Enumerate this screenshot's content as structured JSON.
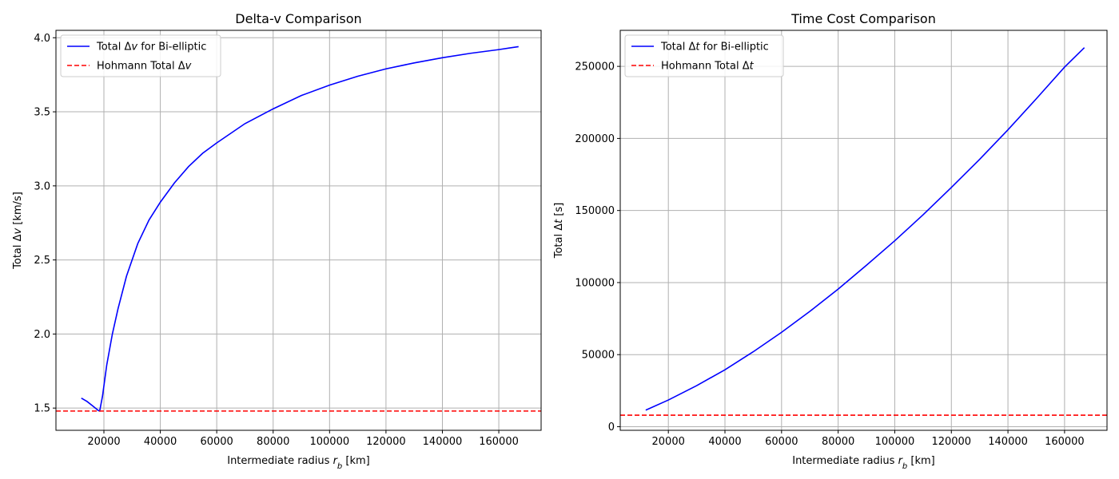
{
  "chart_data": [
    {
      "type": "line",
      "title": "Delta-v Comparison",
      "xlabel": "Intermediate radius r_b [km]",
      "ylabel": "Total Δv [km/s]",
      "xlim": [
        3000,
        175000
      ],
      "ylim": [
        1.35,
        4.05
      ],
      "xticks": [
        20000,
        40000,
        60000,
        80000,
        100000,
        120000,
        140000,
        160000
      ],
      "yticks": [
        1.5,
        2.0,
        2.5,
        3.0,
        3.5,
        4.0
      ],
      "xtick_labels": [
        "20000",
        "40000",
        "60000",
        "80000",
        "100000",
        "120000",
        "140000",
        "160000"
      ],
      "ytick_labels": [
        "1.5",
        "2.0",
        "2.5",
        "3.0",
        "3.5",
        "4.0"
      ],
      "grid": true,
      "legend_position": "upper-left",
      "series": [
        {
          "name": "Total Δv for Bi-elliptic",
          "color": "#0000ff",
          "style": "solid",
          "x": [
            12000,
            14000,
            16000,
            18000,
            18500,
            19500,
            21000,
            23000,
            25000,
            28000,
            32000,
            36000,
            40000,
            45000,
            50000,
            55000,
            60000,
            70000,
            80000,
            90000,
            100000,
            110000,
            120000,
            130000,
            140000,
            150000,
            160000,
            167000
          ],
          "y": [
            1.567,
            1.545,
            1.515,
            1.484,
            1.48,
            1.58,
            1.79,
            2.0,
            2.17,
            2.39,
            2.61,
            2.77,
            2.89,
            3.02,
            3.13,
            3.22,
            3.29,
            3.42,
            3.52,
            3.61,
            3.68,
            3.74,
            3.79,
            3.83,
            3.865,
            3.895,
            3.92,
            3.94
          ]
        },
        {
          "name": "Hohmann Total Δv",
          "color": "#ff0000",
          "style": "dashed",
          "hline": 1.48
        }
      ]
    },
    {
      "type": "line",
      "title": "Time Cost Comparison",
      "xlabel": "Intermediate radius r_b [km]",
      "ylabel": "Total Δt [s]",
      "xlim": [
        3000,
        175000
      ],
      "ylim": [
        -2500,
        275000
      ],
      "xticks": [
        20000,
        40000,
        60000,
        80000,
        100000,
        120000,
        140000,
        160000
      ],
      "yticks": [
        0,
        50000,
        100000,
        150000,
        200000,
        250000
      ],
      "xtick_labels": [
        "20000",
        "40000",
        "60000",
        "80000",
        "100000",
        "120000",
        "140000",
        "160000"
      ],
      "ytick_labels": [
        "0",
        "50000",
        "100000",
        "150000",
        "200000",
        "250000"
      ],
      "grid": true,
      "legend_position": "upper-left",
      "series": [
        {
          "name": "Total Δt for Bi-elliptic",
          "color": "#0000ff",
          "style": "solid",
          "x": [
            12000,
            20000,
            30000,
            40000,
            50000,
            60000,
            70000,
            80000,
            90000,
            100000,
            110000,
            120000,
            130000,
            140000,
            150000,
            160000,
            167000
          ],
          "y": [
            11500,
            18500,
            28500,
            39500,
            52000,
            65500,
            80000,
            95500,
            112000,
            129000,
            147000,
            166000,
            185500,
            206000,
            227500,
            249500,
            263000
          ]
        },
        {
          "name": "Hohmann Total Δt",
          "color": "#ff0000",
          "style": "dashed",
          "hline": 8000
        }
      ]
    }
  ]
}
